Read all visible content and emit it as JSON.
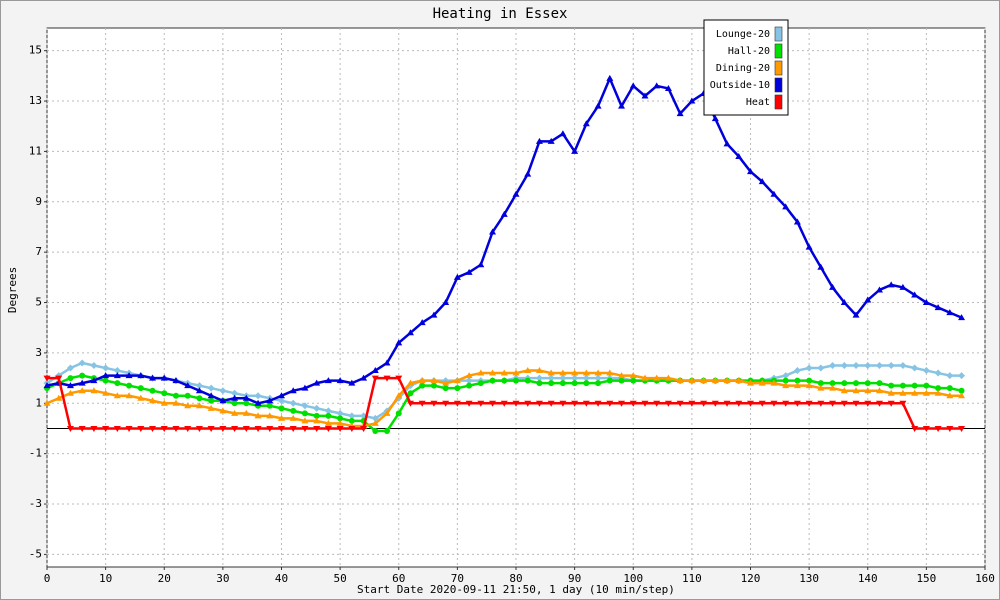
{
  "chart_data": {
    "type": "line",
    "title": "Heating in Essex",
    "x_label": "Start Date 2020-09-11 21:50, 1 day (10 min/step)",
    "y_label": "Degrees",
    "xlim": [
      0,
      160
    ],
    "xticks": [
      0,
      10,
      20,
      30,
      40,
      50,
      60,
      70,
      80,
      90,
      100,
      110,
      120,
      130,
      140,
      150,
      160
    ],
    "ylim": [
      -5.5,
      15.9
    ],
    "yticks": [
      -5,
      -3,
      -1,
      1,
      3,
      5,
      7,
      9,
      11,
      13,
      15
    ],
    "grid": true,
    "legend": "top-right",
    "x": [
      0,
      2,
      4,
      6,
      8,
      10,
      12,
      14,
      16,
      18,
      20,
      22,
      24,
      26,
      28,
      30,
      32,
      34,
      36,
      38,
      40,
      42,
      44,
      46,
      48,
      50,
      52,
      54,
      56,
      58,
      60,
      62,
      64,
      66,
      68,
      70,
      72,
      74,
      76,
      78,
      80,
      82,
      84,
      86,
      88,
      90,
      92,
      94,
      96,
      98,
      100,
      102,
      104,
      106,
      108,
      110,
      112,
      114,
      116,
      118,
      120,
      122,
      124,
      126,
      128,
      130,
      132,
      134,
      136,
      138,
      140,
      142,
      144,
      146,
      148,
      150,
      152,
      154,
      156
    ],
    "series": [
      {
        "name": "Lounge-20",
        "color": "#87c4e4",
        "marker": "diamond",
        "values": [
          1.8,
          2.1,
          2.4,
          2.6,
          2.5,
          2.4,
          2.3,
          2.2,
          2.1,
          2.0,
          2.0,
          1.9,
          1.8,
          1.7,
          1.6,
          1.5,
          1.4,
          1.3,
          1.3,
          1.2,
          1.1,
          1.0,
          0.9,
          0.8,
          0.7,
          0.6,
          0.5,
          0.5,
          0.4,
          0.7,
          1.2,
          1.7,
          1.9,
          1.9,
          1.9,
          1.9,
          1.9,
          1.9,
          1.9,
          1.9,
          2.0,
          2.0,
          2.0,
          2.0,
          2.0,
          2.0,
          2.0,
          2.0,
          2.0,
          2.0,
          1.9,
          1.9,
          1.9,
          1.9,
          1.9,
          1.9,
          1.9,
          1.9,
          1.9,
          1.9,
          1.9,
          1.9,
          2.0,
          2.1,
          2.3,
          2.4,
          2.4,
          2.5,
          2.5,
          2.5,
          2.5,
          2.5,
          2.5,
          2.5,
          2.4,
          2.3,
          2.2,
          2.1,
          2.1
        ]
      },
      {
        "name": "Hall-20",
        "color": "#00e000",
        "marker": "circle",
        "values": [
          1.6,
          1.8,
          2.0,
          2.1,
          2.0,
          1.9,
          1.8,
          1.7,
          1.6,
          1.5,
          1.4,
          1.3,
          1.3,
          1.2,
          1.1,
          1.1,
          1.0,
          1.0,
          0.9,
          0.9,
          0.8,
          0.7,
          0.6,
          0.5,
          0.5,
          0.4,
          0.3,
          0.3,
          -0.1,
          -0.1,
          0.6,
          1.4,
          1.7,
          1.7,
          1.6,
          1.6,
          1.7,
          1.8,
          1.9,
          1.9,
          1.9,
          1.9,
          1.8,
          1.8,
          1.8,
          1.8,
          1.8,
          1.8,
          1.9,
          1.9,
          1.9,
          1.9,
          1.9,
          1.9,
          1.9,
          1.9,
          1.9,
          1.9,
          1.9,
          1.9,
          1.9,
          1.9,
          1.9,
          1.9,
          1.9,
          1.9,
          1.8,
          1.8,
          1.8,
          1.8,
          1.8,
          1.8,
          1.7,
          1.7,
          1.7,
          1.7,
          1.6,
          1.6,
          1.5
        ]
      },
      {
        "name": "Dining-20",
        "color": "#ff9900",
        "marker": "triangle",
        "values": [
          1.0,
          1.2,
          1.4,
          1.5,
          1.5,
          1.4,
          1.3,
          1.3,
          1.2,
          1.1,
          1.0,
          1.0,
          0.9,
          0.9,
          0.8,
          0.7,
          0.6,
          0.6,
          0.5,
          0.5,
          0.4,
          0.4,
          0.3,
          0.3,
          0.2,
          0.2,
          0.1,
          0.1,
          0.2,
          0.6,
          1.3,
          1.8,
          1.9,
          1.9,
          1.8,
          1.9,
          2.1,
          2.2,
          2.2,
          2.2,
          2.2,
          2.3,
          2.3,
          2.2,
          2.2,
          2.2,
          2.2,
          2.2,
          2.2,
          2.1,
          2.1,
          2.0,
          2.0,
          2.0,
          1.9,
          1.9,
          1.9,
          1.9,
          1.9,
          1.9,
          1.8,
          1.8,
          1.8,
          1.7,
          1.7,
          1.7,
          1.6,
          1.6,
          1.5,
          1.5,
          1.5,
          1.5,
          1.4,
          1.4,
          1.4,
          1.4,
          1.4,
          1.3,
          1.3
        ]
      },
      {
        "name": "Outside-10",
        "color": "#0000dd",
        "marker": "triangle",
        "values": [
          1.7,
          1.8,
          1.7,
          1.8,
          1.9,
          2.1,
          2.1,
          2.1,
          2.1,
          2.0,
          2.0,
          1.9,
          1.7,
          1.5,
          1.3,
          1.1,
          1.2,
          1.2,
          1.0,
          1.1,
          1.3,
          1.5,
          1.6,
          1.8,
          1.9,
          1.9,
          1.8,
          2.0,
          2.3,
          2.6,
          3.4,
          3.8,
          4.2,
          4.5,
          5.0,
          6.0,
          6.2,
          6.5,
          7.8,
          8.5,
          9.3,
          10.1,
          11.4,
          11.4,
          11.7,
          11.0,
          12.1,
          12.8,
          13.9,
          12.8,
          13.6,
          13.2,
          13.6,
          13.5,
          12.5,
          13.0,
          13.3,
          12.3,
          11.3,
          10.8,
          10.2,
          9.8,
          9.3,
          8.8,
          8.2,
          7.2,
          6.4,
          5.6,
          5.0,
          4.5,
          5.1,
          5.5,
          5.7,
          5.6,
          5.3,
          5.0,
          4.8,
          4.6,
          4.4
        ]
      },
      {
        "name": "Heat",
        "color": "#ff0000",
        "marker": "down-triangle",
        "values": [
          2,
          2,
          0,
          0,
          0,
          0,
          0,
          0,
          0,
          0,
          0,
          0,
          0,
          0,
          0,
          0,
          0,
          0,
          0,
          0,
          0,
          0,
          0,
          0,
          0,
          0,
          0,
          0,
          2,
          2,
          2,
          1,
          1,
          1,
          1,
          1,
          1,
          1,
          1,
          1,
          1,
          1,
          1,
          1,
          1,
          1,
          1,
          1,
          1,
          1,
          1,
          1,
          1,
          1,
          1,
          1,
          1,
          1,
          1,
          1,
          1,
          1,
          1,
          1,
          1,
          1,
          1,
          1,
          1,
          1,
          1,
          1,
          1,
          1,
          0,
          0,
          0,
          0,
          0
        ]
      }
    ]
  }
}
